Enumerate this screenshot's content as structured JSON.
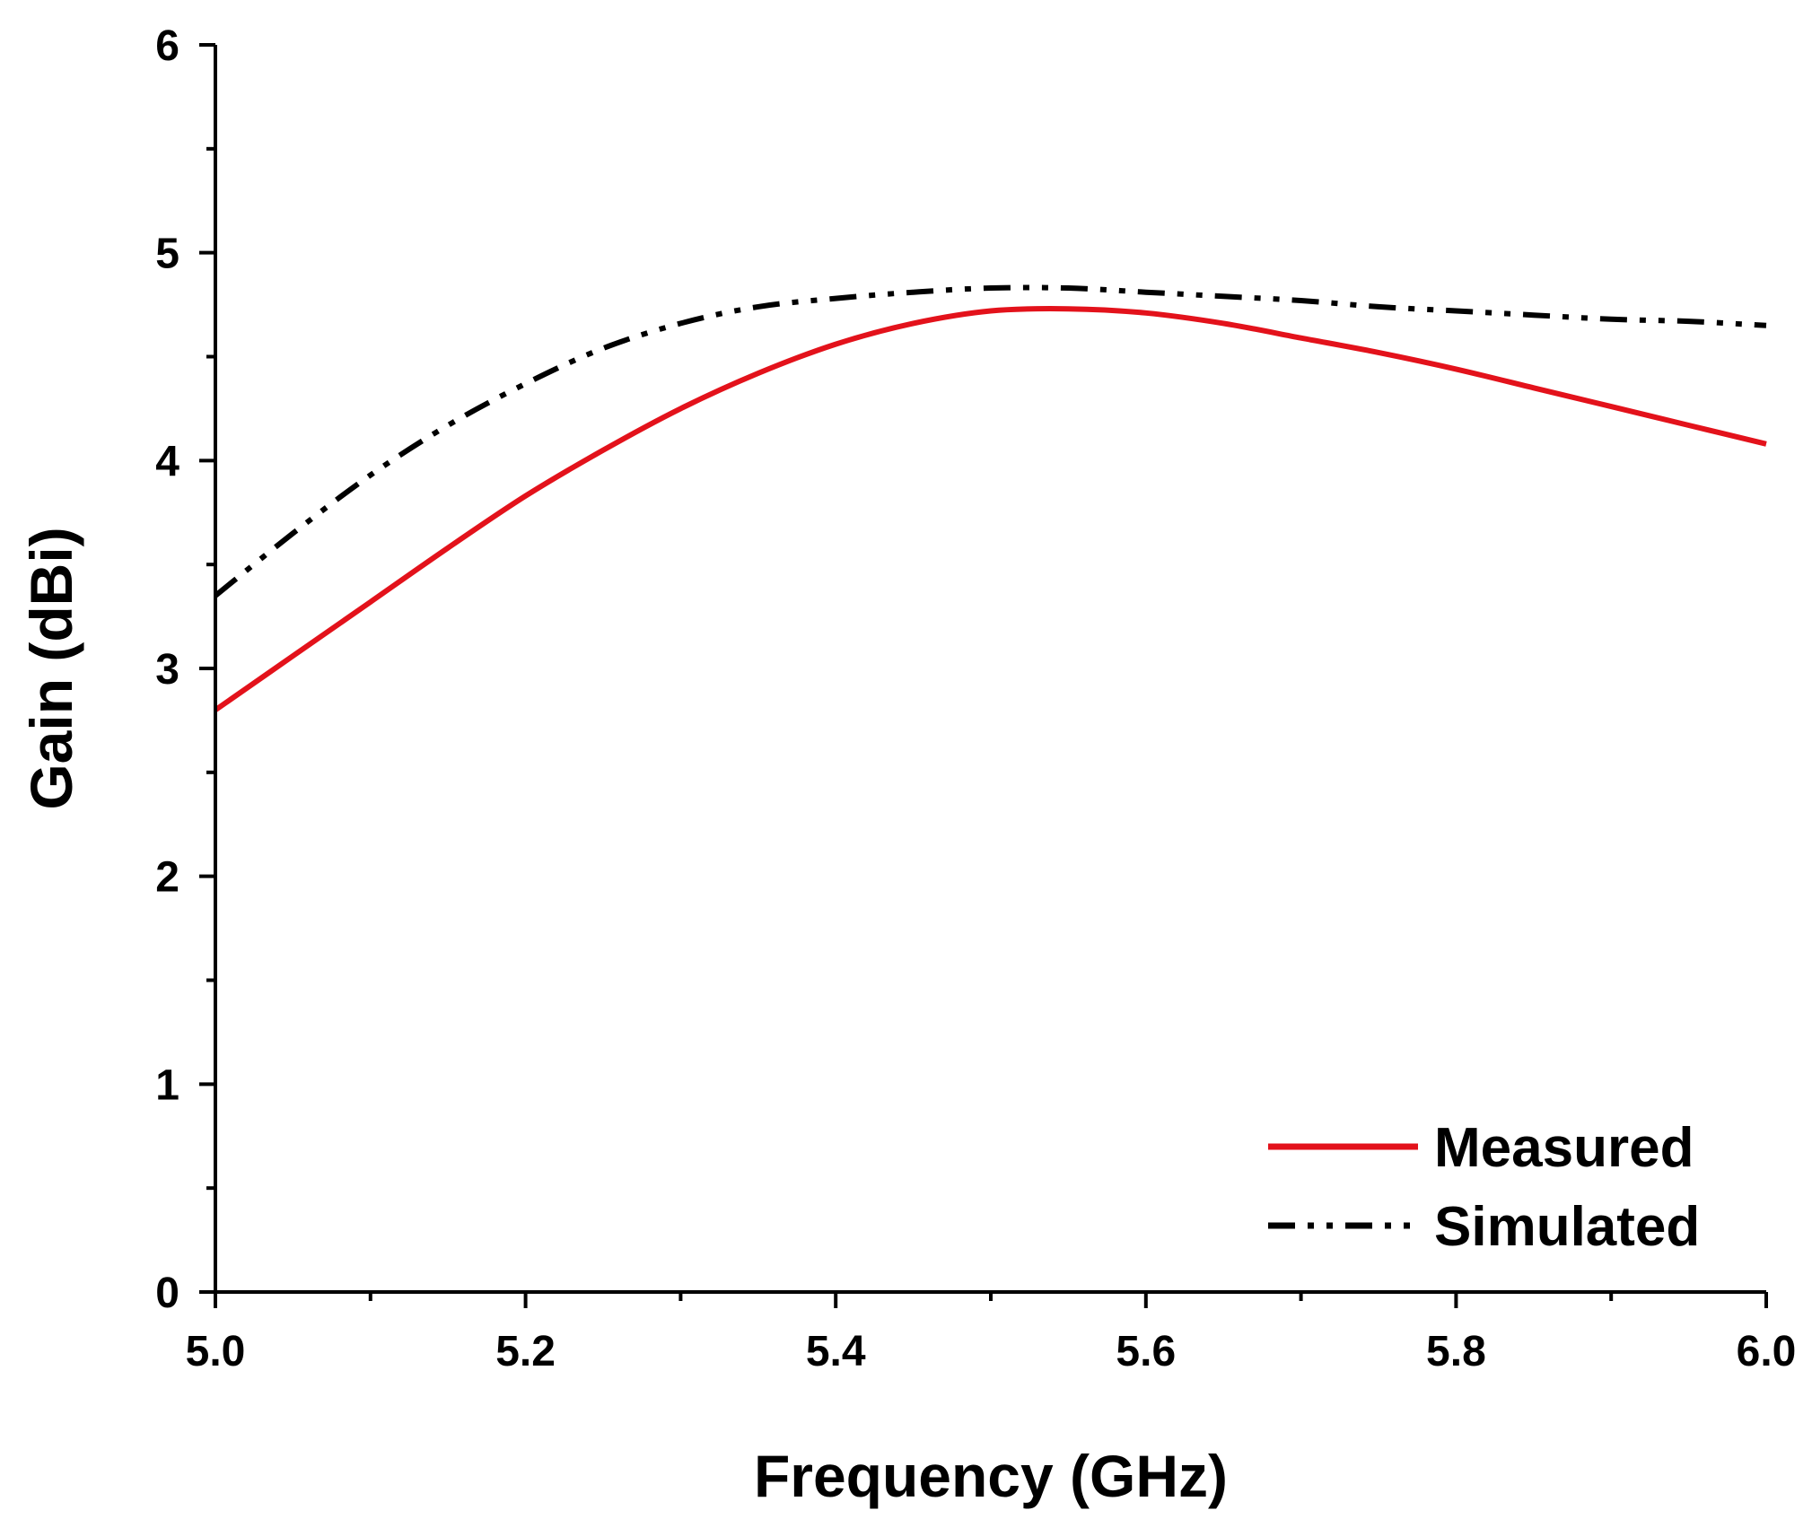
{
  "chart_data": {
    "type": "line",
    "title": "",
    "xlabel": "Frequency (GHz)",
    "ylabel": "Gain (dBi)",
    "xlim": [
      5.0,
      6.0
    ],
    "ylim": [
      0,
      6
    ],
    "x_ticks": [
      "5.0",
      "5.2",
      "5.4",
      "5.6",
      "5.8",
      "6.0"
    ],
    "y_ticks": [
      "0",
      "1",
      "2",
      "3",
      "4",
      "5",
      "6"
    ],
    "x_minor_step": 0.1,
    "y_minor_step": 0.5,
    "grid": false,
    "legend_position": "bottom-right",
    "series": [
      {
        "name": "Measured",
        "color": "#e3121b",
        "style": "solid",
        "x": [
          5.0,
          5.05,
          5.1,
          5.15,
          5.2,
          5.25,
          5.3,
          5.35,
          5.4,
          5.45,
          5.5,
          5.55,
          5.6,
          5.65,
          5.7,
          5.75,
          5.8,
          5.85,
          5.9,
          5.95,
          6.0
        ],
        "y": [
          2.8,
          3.06,
          3.32,
          3.58,
          3.83,
          4.05,
          4.25,
          4.42,
          4.56,
          4.66,
          4.72,
          4.73,
          4.71,
          4.66,
          4.59,
          4.52,
          4.44,
          4.35,
          4.26,
          4.17,
          4.08
        ]
      },
      {
        "name": "Simulated",
        "color": "#000000",
        "style": "dash-dot-dot",
        "x": [
          5.0,
          5.05,
          5.1,
          5.15,
          5.2,
          5.25,
          5.3,
          5.35,
          5.4,
          5.45,
          5.5,
          5.55,
          5.6,
          5.65,
          5.7,
          5.75,
          5.8,
          5.85,
          5.9,
          5.95,
          6.0
        ],
        "y": [
          3.35,
          3.65,
          3.93,
          4.17,
          4.37,
          4.54,
          4.66,
          4.74,
          4.78,
          4.81,
          4.83,
          4.83,
          4.81,
          4.79,
          4.77,
          4.74,
          4.72,
          4.7,
          4.68,
          4.67,
          4.65
        ]
      }
    ]
  }
}
